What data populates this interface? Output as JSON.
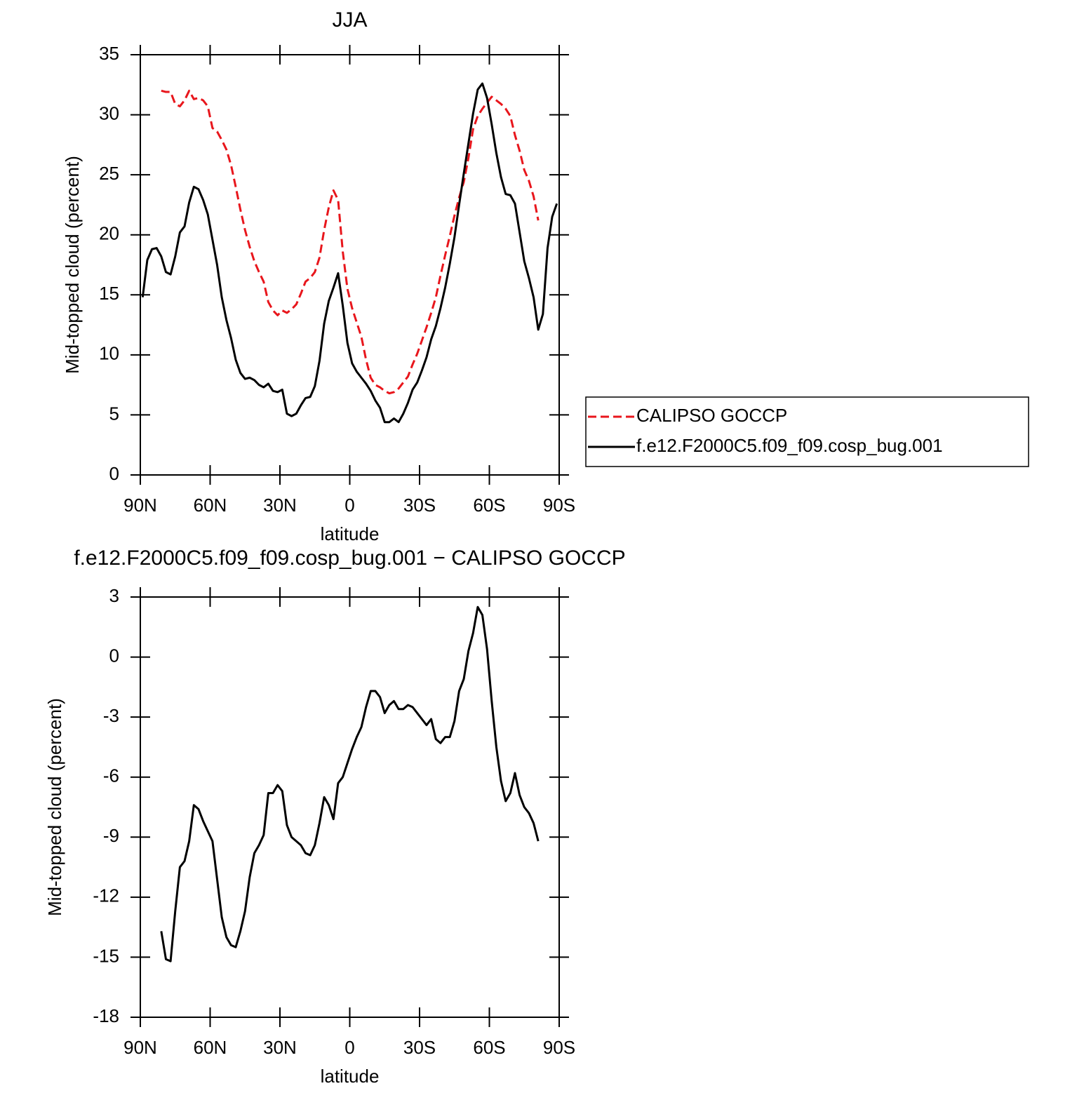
{
  "chart_data": [
    {
      "type": "line",
      "title": "JJA",
      "xlabel": "latitude",
      "ylabel": "Mid-topped cloud (percent)",
      "x": [
        89,
        87,
        85,
        83,
        81,
        79,
        77,
        75,
        73,
        71,
        69,
        67,
        65,
        63,
        61,
        59,
        57,
        55,
        53,
        51,
        49,
        47,
        45,
        43,
        41,
        39,
        37,
        35,
        33,
        31,
        29,
        27,
        25,
        23,
        21,
        19,
        17,
        15,
        13,
        11,
        9,
        7,
        5,
        3,
        1,
        -1,
        -3,
        -5,
        -7,
        -9,
        -11,
        -13,
        -15,
        -17,
        -19,
        -21,
        -23,
        -25,
        -27,
        -29,
        -31,
        -33,
        -35,
        -37,
        -39,
        -41,
        -43,
        -45,
        -47,
        -49,
        -51,
        -53,
        -55,
        -57,
        -59,
        -61,
        -63,
        -65,
        -67,
        -69,
        -71,
        -73,
        -75,
        -77,
        -79,
        -81,
        -83,
        -85,
        -87,
        -89
      ],
      "series": [
        {
          "name": "CALIPSO GOCCP",
          "color": "#e8161c",
          "dashed": true,
          "values": [
            null,
            null,
            null,
            null,
            32.0,
            31.9,
            31.9,
            30.9,
            30.7,
            31.2,
            32.0,
            31.3,
            31.4,
            31.2,
            30.7,
            28.9,
            28.6,
            27.9,
            27.1,
            25.8,
            24.0,
            22.1,
            20.4,
            19.0,
            17.8,
            16.9,
            16.1,
            14.4,
            13.7,
            13.3,
            13.7,
            13.5,
            13.8,
            14.2,
            15.1,
            16.1,
            16.4,
            16.9,
            18.1,
            20.4,
            22.3,
            23.7,
            22.9,
            18.6,
            15.5,
            13.9,
            12.7,
            11.5,
            9.6,
            8.1,
            7.5,
            7.3,
            7.0,
            6.8,
            6.9,
            7.2,
            7.7,
            8.2,
            9.2,
            10.1,
            11.2,
            12.3,
            13.5,
            14.8,
            16.6,
            18.3,
            19.9,
            21.6,
            23.1,
            24.4,
            26.4,
            28.8,
            29.9,
            30.5,
            31.0,
            31.5,
            31.2,
            30.9,
            30.5,
            29.9,
            28.3,
            27.0,
            25.4,
            24.5,
            23.2,
            21.2,
            null,
            null,
            null,
            null
          ]
        },
        {
          "name": "f.e12.F2000C5.f09_f09.cosp_bug.001",
          "color": "#000000",
          "dashed": false,
          "values": [
            14.8,
            17.9,
            18.8,
            18.9,
            18.2,
            16.9,
            16.7,
            18.2,
            20.2,
            20.7,
            22.7,
            24.0,
            23.8,
            22.9,
            21.7,
            19.6,
            17.5,
            14.8,
            12.9,
            11.4,
            9.6,
            8.5,
            8.0,
            8.1,
            7.9,
            7.5,
            7.3,
            7.6,
            7.0,
            6.9,
            7.1,
            5.1,
            4.9,
            5.1,
            5.8,
            6.4,
            6.5,
            7.4,
            9.5,
            12.6,
            14.5,
            15.6,
            16.8,
            14.1,
            11.0,
            9.3,
            8.6,
            8.1,
            7.6,
            7.0,
            6.2,
            5.6,
            4.4,
            4.4,
            4.7,
            4.4,
            5.1,
            6.0,
            7.1,
            7.7,
            8.7,
            9.8,
            11.3,
            12.4,
            13.9,
            15.6,
            17.6,
            19.8,
            22.5,
            25.1,
            27.6,
            30.1,
            32.1,
            32.6,
            31.4,
            29.2,
            26.8,
            24.8,
            23.4,
            23.3,
            22.6,
            20.2,
            17.8,
            16.4,
            14.8,
            12.1,
            13.4,
            18.9,
            21.5,
            22.6
          ]
        }
      ],
      "xlim": [
        90,
        -90
      ],
      "xticks": [
        {
          "value": 90,
          "label": "90N"
        },
        {
          "value": 60,
          "label": "60N"
        },
        {
          "value": 30,
          "label": "30N"
        },
        0,
        {
          "value": -30,
          "label": "30S"
        },
        {
          "value": -60,
          "label": "60S"
        },
        {
          "value": -90,
          "label": "90S"
        }
      ],
      "ylim": [
        0,
        35
      ],
      "yticks": [
        0,
        5,
        10,
        15,
        20,
        25,
        30,
        35
      ],
      "legend": "right"
    },
    {
      "type": "line",
      "title": "f.e12.F2000C5.f09_f09.cosp_bug.001 − CALIPSO GOCCP",
      "xlabel": "latitude",
      "ylabel": "Mid-topped cloud (percent)",
      "x": [
        89,
        87,
        85,
        83,
        81,
        79,
        77,
        75,
        73,
        71,
        69,
        67,
        65,
        63,
        61,
        59,
        57,
        55,
        53,
        51,
        49,
        47,
        45,
        43,
        41,
        39,
        37,
        35,
        33,
        31,
        29,
        27,
        25,
        23,
        21,
        19,
        17,
        15,
        13,
        11,
        9,
        7,
        5,
        3,
        1,
        -1,
        -3,
        -5,
        -7,
        -9,
        -11,
        -13,
        -15,
        -17,
        -19,
        -21,
        -23,
        -25,
        -27,
        -29,
        -31,
        -33,
        -35,
        -37,
        -39,
        -41,
        -43,
        -45,
        -47,
        -49,
        -51,
        -53,
        -55,
        -57,
        -59,
        -61,
        -63,
        -65,
        -67,
        -69,
        -71,
        -73,
        -75,
        -77,
        -79,
        -81,
        -83,
        -85,
        -87,
        -89
      ],
      "series": [
        {
          "color": "#000000",
          "dashed": false,
          "values": [
            null,
            null,
            null,
            null,
            -13.7,
            -15.1,
            -15.2,
            -12.7,
            -10.5,
            -10.2,
            -9.2,
            -7.4,
            -7.6,
            -8.2,
            -8.7,
            -9.2,
            -11.1,
            -13.0,
            -14.0,
            -14.4,
            -14.5,
            -13.7,
            -12.7,
            -11.0,
            -9.8,
            -9.4,
            -8.9,
            -6.8,
            -6.8,
            -6.4,
            -6.7,
            -8.4,
            -9.0,
            -9.2,
            -9.4,
            -9.8,
            -9.9,
            -9.4,
            -8.3,
            -7.0,
            -7.4,
            -8.1,
            -6.3,
            -6.0,
            -5.3,
            -4.6,
            -4.0,
            -3.5,
            -2.5,
            -1.7,
            -1.7,
            -2.0,
            -2.8,
            -2.4,
            -2.2,
            -2.6,
            -2.6,
            -2.4,
            -2.5,
            -2.8,
            -3.1,
            -3.4,
            -3.1,
            -4.1,
            -4.3,
            -4.0,
            -4.0,
            -3.2,
            -1.7,
            -1.1,
            0.3,
            1.2,
            2.5,
            2.1,
            0.4,
            -2.2,
            -4.5,
            -6.2,
            -7.2,
            -6.8,
            -5.8,
            -6.9,
            -7.5,
            -7.8,
            -8.3,
            -9.2,
            null,
            null,
            null,
            null
          ]
        }
      ],
      "xlim": [
        90,
        -90
      ],
      "xticks": [
        {
          "value": 90,
          "label": "90N"
        },
        {
          "value": 60,
          "label": "60N"
        },
        {
          "value": 30,
          "label": "30N"
        },
        0,
        {
          "value": -30,
          "label": "30S"
        },
        {
          "value": -60,
          "label": "60S"
        },
        {
          "value": -90,
          "label": "90S"
        }
      ],
      "ylim": [
        -18,
        3
      ],
      "yticks": [
        -18,
        -15,
        -12,
        -9,
        -6,
        -3,
        0,
        3
      ]
    }
  ]
}
